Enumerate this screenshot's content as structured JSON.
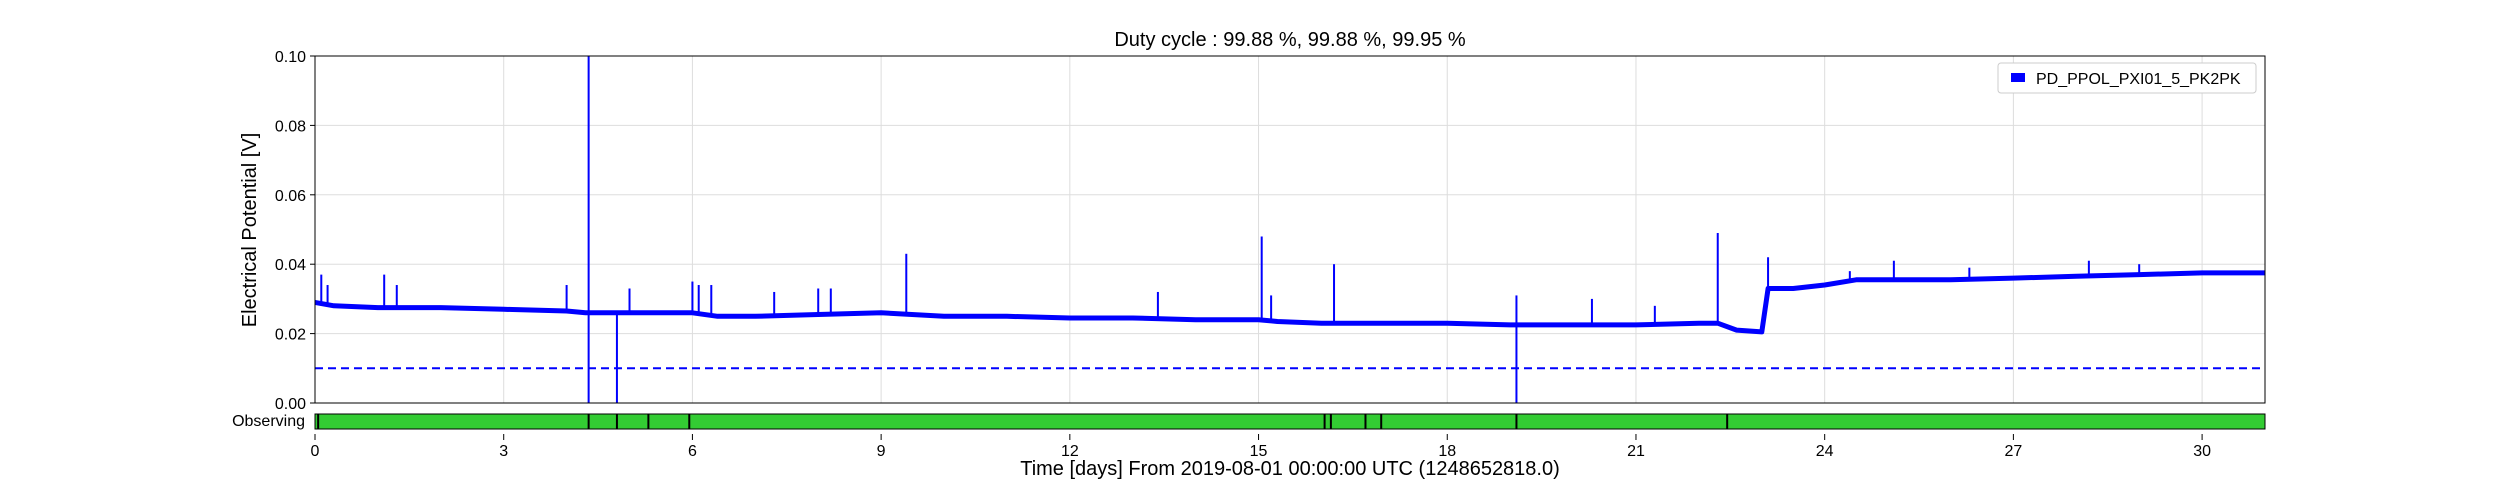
{
  "chart_data": {
    "type": "line",
    "title": "Duty cycle : 99.88 %, 99.88 %, 99.95 %",
    "xlabel": "Time [days] From 2019-08-01 00:00:00 UTC (1248652818.0)",
    "ylabel": "Electrical Potential [V]",
    "xlim": [
      0,
      31
    ],
    "ylim": [
      0,
      0.1
    ],
    "x_ticks": [
      0,
      3,
      6,
      9,
      12,
      15,
      18,
      21,
      24,
      27,
      30
    ],
    "x_tick_labels": [
      "0",
      "3",
      "6",
      "9",
      "12",
      "15",
      "18",
      "21",
      "24",
      "27",
      "30"
    ],
    "y_ticks": [
      0,
      0.02,
      0.04,
      0.06,
      0.08,
      0.1
    ],
    "y_tick_labels": [
      "0.00",
      "0.02",
      "0.04",
      "0.06",
      "0.08",
      "0.10"
    ],
    "grid": true,
    "legend_position": "top-right",
    "series": [
      {
        "name": "PD_PPOL_PXI01_5_PK2PK",
        "color": "#0000ff",
        "x": [
          0,
          0.3,
          1,
          2,
          3,
          4,
          4.3,
          5,
          6,
          6.4,
          7,
          8,
          9,
          10,
          11,
          12,
          13,
          14,
          15,
          15.3,
          16,
          17,
          18,
          19,
          20,
          21,
          22,
          22.3,
          22.6,
          23.0,
          23.1,
          23.5,
          24,
          24.5,
          25,
          26,
          27,
          28,
          29,
          30,
          31
        ],
        "y": [
          0.029,
          0.028,
          0.0275,
          0.0275,
          0.027,
          0.0265,
          0.026,
          0.026,
          0.026,
          0.025,
          0.025,
          0.0255,
          0.026,
          0.025,
          0.025,
          0.0245,
          0.0245,
          0.024,
          0.024,
          0.0235,
          0.023,
          0.023,
          0.023,
          0.0225,
          0.0225,
          0.0225,
          0.023,
          0.023,
          0.021,
          0.0205,
          0.033,
          0.033,
          0.034,
          0.0355,
          0.0355,
          0.0355,
          0.036,
          0.0365,
          0.037,
          0.0375,
          0.0375
        ]
      }
    ],
    "spikes": [
      {
        "x": 0.1,
        "y": 0.037
      },
      {
        "x": 0.2,
        "y": 0.034
      },
      {
        "x": 1.1,
        "y": 0.037
      },
      {
        "x": 1.3,
        "y": 0.034
      },
      {
        "x": 4.0,
        "y": 0.034
      },
      {
        "x": 4.35,
        "y": 0.1
      },
      {
        "x": 4.35,
        "y": 0.0
      },
      {
        "x": 4.8,
        "y": 0.0
      },
      {
        "x": 5.0,
        "y": 0.033
      },
      {
        "x": 6.0,
        "y": 0.035
      },
      {
        "x": 6.1,
        "y": 0.034
      },
      {
        "x": 6.3,
        "y": 0.034
      },
      {
        "x": 7.3,
        "y": 0.032
      },
      {
        "x": 8.0,
        "y": 0.033
      },
      {
        "x": 8.2,
        "y": 0.033
      },
      {
        "x": 9.4,
        "y": 0.043
      },
      {
        "x": 13.4,
        "y": 0.032
      },
      {
        "x": 15.05,
        "y": 0.048
      },
      {
        "x": 15.2,
        "y": 0.031
      },
      {
        "x": 16.2,
        "y": 0.04
      },
      {
        "x": 19.1,
        "y": 0.031
      },
      {
        "x": 19.1,
        "y": 0.0
      },
      {
        "x": 20.3,
        "y": 0.03
      },
      {
        "x": 21.3,
        "y": 0.028
      },
      {
        "x": 22.3,
        "y": 0.049
      },
      {
        "x": 23.1,
        "y": 0.042
      },
      {
        "x": 24.4,
        "y": 0.038
      },
      {
        "x": 25.1,
        "y": 0.041
      },
      {
        "x": 26.3,
        "y": 0.039
      },
      {
        "x": 28.2,
        "y": 0.041
      },
      {
        "x": 29.0,
        "y": 0.04
      }
    ],
    "threshold": {
      "y": 0.01,
      "style": "dashed",
      "color": "#0000ff"
    },
    "state_bar": {
      "label": "Observing",
      "color": "#33cc33",
      "gaps_x": [
        0.05,
        4.35,
        4.8,
        5.3,
        5.95,
        16.05,
        16.15,
        16.7,
        16.95,
        19.1,
        22.45
      ]
    }
  }
}
